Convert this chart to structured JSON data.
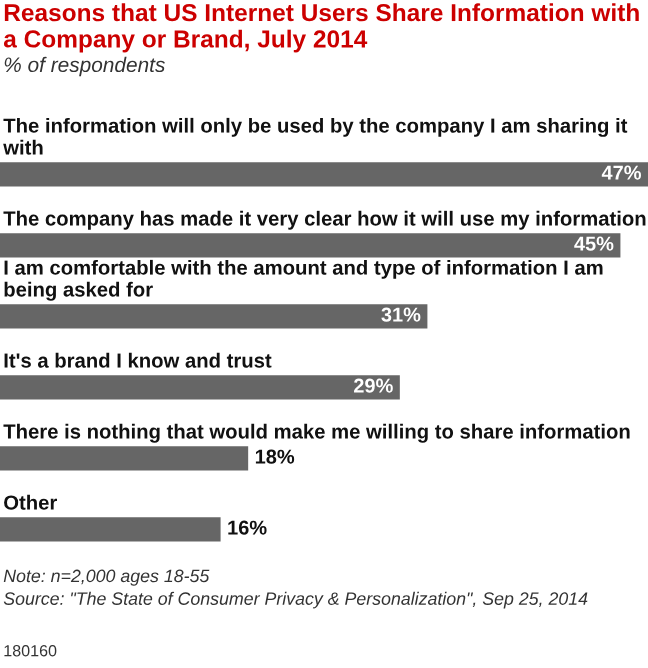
{
  "chart_data": {
    "type": "bar",
    "orientation": "horizontal",
    "title": "Reasons that US Internet Users Share Information with a Company or Brand, July 2014",
    "subtitle": "% of respondents",
    "categories": [
      "The information will only be used by the company I am sharing it with",
      "The company has made it very clear how it will use my information",
      "I am comfortable with the amount and type of information I am being asked for",
      "It's a brand I know and trust",
      "There is nothing that would make me willing to share information",
      "Other"
    ],
    "values": [
      47,
      45,
      31,
      29,
      18,
      16
    ],
    "color": "#666666",
    "value_labels": [
      "47%",
      "45%",
      "31%",
      "29%",
      "18%",
      "16%"
    ],
    "annotations": [
      "Note: n=2,000 ages 18-55",
      "Source: \"The State of Consumer Privacy & Personalization\", Sep 25, 2014",
      "180160"
    ]
  }
}
